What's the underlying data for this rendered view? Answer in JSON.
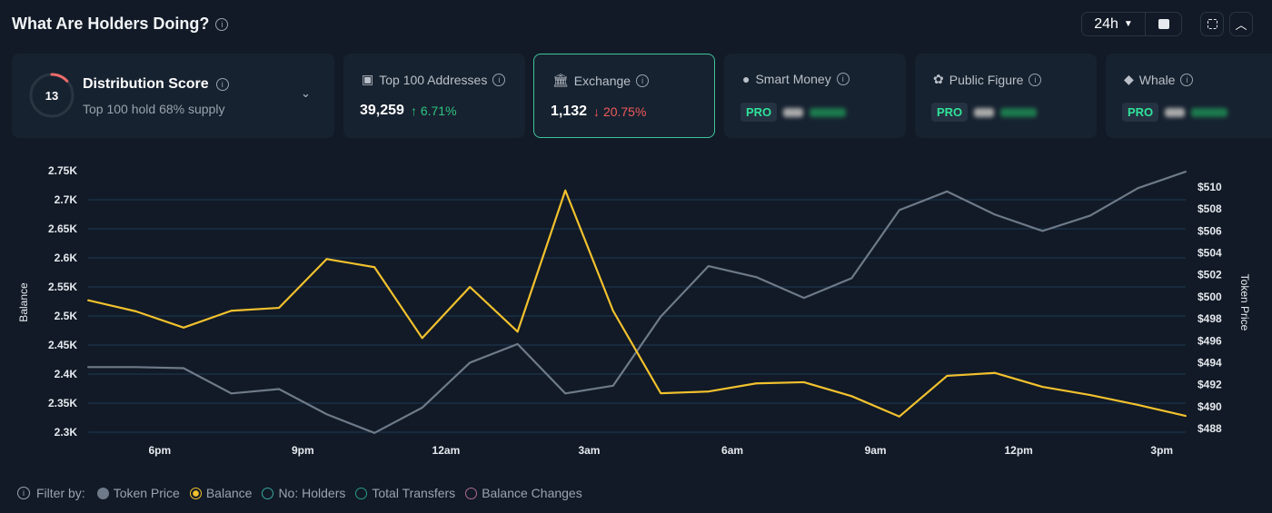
{
  "header": {
    "title": "What Are Holders Doing?",
    "timeframe": "24h"
  },
  "distribution": {
    "score": "13",
    "score_fraction": 0.13,
    "title": "Distribution Score",
    "subtitle": "Top 100 hold 68% supply"
  },
  "cards": [
    {
      "label": "Top 100 Addresses",
      "icon": "wallet-icon",
      "value": "39,259",
      "change": "6.71%",
      "direction": "up",
      "selected": false
    },
    {
      "label": "Exchange",
      "icon": "bank-icon",
      "value": "1,132",
      "change": "20.75%",
      "direction": "down",
      "selected": true
    },
    {
      "label": "Smart Money",
      "icon": "sunglasses-icon",
      "badge": "PRO"
    },
    {
      "label": "Public Figure",
      "icon": "podium-icon",
      "badge": "PRO"
    },
    {
      "label": "Whale",
      "icon": "whale-icon",
      "badge": "PRO"
    }
  ],
  "colors": {
    "balance": "#f2c12e",
    "token_price": "#6e7a89",
    "accent": "#3fc59a",
    "up": "#2fc37f",
    "down": "#ef5a5a"
  },
  "chart_data": {
    "type": "line",
    "ylabel": "Balance",
    "y2label": "Token Price",
    "x_ticks": [
      "6pm",
      "9pm",
      "12am",
      "3am",
      "6am",
      "9am",
      "12pm",
      "3pm"
    ],
    "x": [
      "4:30pm",
      "5:30pm",
      "6:30pm",
      "7:30pm",
      "8:30pm",
      "9:30pm",
      "10:30pm",
      "11:30pm",
      "12:30am",
      "1:30am",
      "2:30am",
      "3:30am",
      "4:30am",
      "5:30am",
      "6:30am",
      "7:30am",
      "8:30am",
      "9:30am",
      "10:30am",
      "11:30am",
      "12:30pm",
      "1:30pm",
      "2:30pm",
      "3:30pm"
    ],
    "y_ticks": [
      "2.75K",
      "2.7K",
      "2.65K",
      "2.6K",
      "2.55K",
      "2.5K",
      "2.45K",
      "2.4K",
      "2.35K",
      "2.3K"
    ],
    "y2_ticks": [
      "$510",
      "$508",
      "$506",
      "$504",
      "$502",
      "$500",
      "$498",
      "$496",
      "$494",
      "$492",
      "$490",
      "$488"
    ],
    "ylim": [
      2.3,
      2.75
    ],
    "y2lim": [
      488,
      510
    ],
    "series": [
      {
        "name": "Balance",
        "axis": "left",
        "unit": "K",
        "values": [
          2.527,
          2.508,
          2.48,
          2.509,
          2.514,
          2.598,
          2.584,
          2.462,
          2.55,
          2.473,
          2.716,
          2.509,
          2.367,
          2.37,
          2.384,
          2.386,
          2.362,
          2.327,
          2.397,
          2.402,
          2.378,
          2.364,
          2.347,
          2.328
        ]
      },
      {
        "name": "Token Price",
        "axis": "right",
        "values": [
          493.6,
          493.6,
          493.5,
          491.2,
          491.6,
          489.3,
          487.6,
          489.9,
          494.0,
          495.7,
          491.2,
          491.9,
          498.2,
          502.8,
          501.8,
          499.9,
          501.7,
          507.9,
          509.6,
          507.5,
          506.0,
          507.4,
          509.9,
          511.4
        ]
      }
    ],
    "grid": true
  },
  "legend": {
    "filter_label": "Filter by:",
    "items": [
      {
        "label": "Token Price",
        "color": "#6e7a89",
        "active": true
      },
      {
        "label": "Balance",
        "color": "#f2c12e",
        "active": true
      },
      {
        "label": "No: Holders",
        "color": "#3aa6a0",
        "active": false
      },
      {
        "label": "Total Transfers",
        "color": "#2a9d84",
        "active": false
      },
      {
        "label": "Balance Changes",
        "color": "#b06a9a",
        "active": false
      }
    ]
  }
}
